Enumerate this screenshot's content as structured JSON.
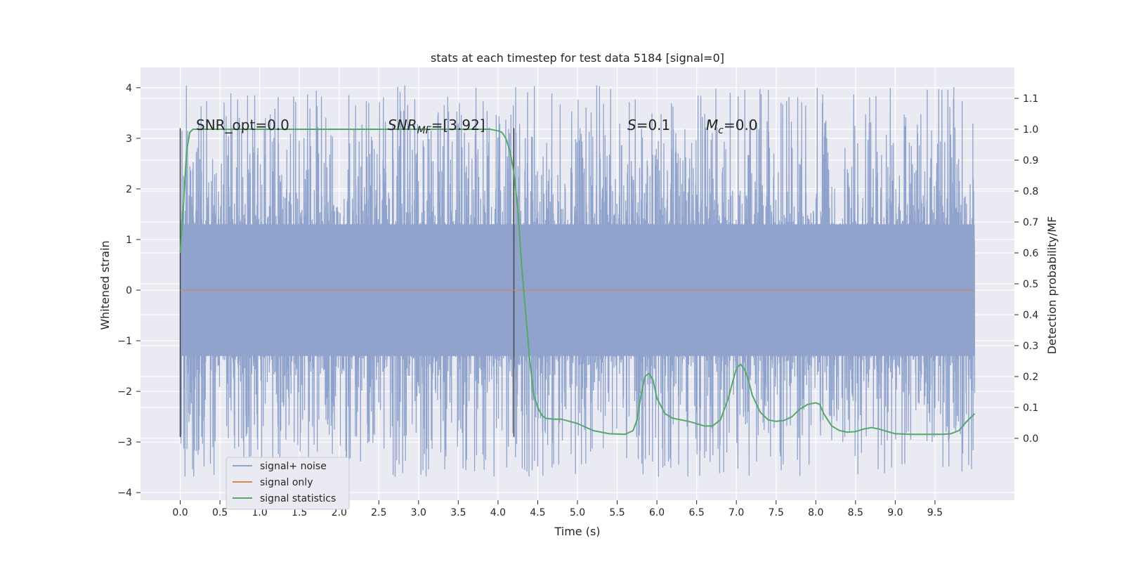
{
  "chart_data": {
    "type": "line",
    "title": "stats at each timestep for test data 5184 [signal=0]",
    "xlabel": "Time (s)",
    "ylabel": "Whitened strain",
    "ylabel_right": "Detection probability/MF",
    "xlim": [
      -0.5,
      10.5
    ],
    "ylim": [
      -4.15,
      4.4
    ],
    "ylim_right": [
      -0.2,
      1.2
    ],
    "x_ticks": [
      "0.0",
      "0.5",
      "1.0",
      "1.5",
      "2.0",
      "2.5",
      "3.0",
      "3.5",
      "4.0",
      "4.5",
      "5.0",
      "5.5",
      "6.0",
      "6.5",
      "7.0",
      "7.5",
      "8.0",
      "8.5",
      "9.0",
      "9.5"
    ],
    "y_ticks": [
      "4",
      "3",
      "2",
      "1",
      "0",
      "−1",
      "−2",
      "−3",
      "−4"
    ],
    "y_ticks_right": [
      "1.1",
      "1.0",
      "0.9",
      "0.8",
      "0.7",
      "0.6",
      "0.5",
      "0.4",
      "0.3",
      "0.2",
      "0.1",
      "0.0"
    ],
    "grid": true,
    "legend_position": "lower-left",
    "annotations": {
      "snr_opt": "SNR_opt=0.0",
      "snr_mf_italic": "SNR",
      "snr_mf_sub": "MF",
      "snr_mf_value": "=[3.92]",
      "s_italic": "S",
      "s_value": "=0.1",
      "mc_italic": "M",
      "mc_sub": "c",
      "mc_value": "=0.0"
    },
    "vertical_markers": [
      0.0,
      4.2
    ],
    "series": [
      {
        "name": "signal+ noise",
        "color": "#8fa3cc",
        "x_range": [
          0.0,
          10.0
        ],
        "envelope_core": 1.3,
        "peak_range": [
          -3.7,
          4.05
        ]
      },
      {
        "name": "signal only",
        "color": "#dd8452",
        "x": [
          0.0,
          10.0
        ],
        "y": [
          0.0,
          0.0
        ]
      },
      {
        "name": "signal statistics",
        "color": "#55a868",
        "axis": "right",
        "x": [
          0.0,
          0.04,
          0.08,
          0.12,
          0.16,
          0.2,
          0.3,
          0.5,
          1.0,
          2.0,
          3.0,
          3.5,
          3.9,
          4.0,
          4.05,
          4.1,
          4.15,
          4.2,
          4.25,
          4.3,
          4.35,
          4.4,
          4.45,
          4.5,
          4.55,
          4.6,
          4.7,
          4.8,
          5.0,
          5.2,
          5.4,
          5.6,
          5.7,
          5.75,
          5.8,
          5.85,
          5.9,
          5.95,
          6.0,
          6.1,
          6.2,
          6.4,
          6.6,
          6.7,
          6.8,
          6.9,
          6.95,
          7.0,
          7.05,
          7.1,
          7.15,
          7.2,
          7.3,
          7.4,
          7.5,
          7.6,
          7.7,
          7.8,
          7.9,
          8.0,
          8.05,
          8.1,
          8.2,
          8.3,
          8.4,
          8.5,
          8.6,
          8.7,
          8.8,
          8.9,
          9.0,
          9.2,
          9.4,
          9.6,
          9.7,
          9.8,
          9.9,
          10.0
        ],
        "y": [
          0.6,
          0.75,
          0.93,
          0.99,
          1.0,
          1.0,
          1.0,
          1.0,
          1.0,
          1.0,
          1.0,
          1.0,
          1.0,
          0.995,
          0.99,
          0.97,
          0.93,
          0.86,
          0.74,
          0.55,
          0.4,
          0.25,
          0.14,
          0.1,
          0.075,
          0.065,
          0.062,
          0.062,
          0.048,
          0.025,
          0.015,
          0.013,
          0.025,
          0.06,
          0.14,
          0.2,
          0.21,
          0.19,
          0.13,
          0.08,
          0.065,
          0.055,
          0.04,
          0.04,
          0.06,
          0.13,
          0.18,
          0.225,
          0.24,
          0.225,
          0.19,
          0.14,
          0.085,
          0.06,
          0.055,
          0.058,
          0.07,
          0.095,
          0.11,
          0.115,
          0.11,
          0.08,
          0.04,
          0.025,
          0.02,
          0.022,
          0.03,
          0.035,
          0.03,
          0.022,
          0.015,
          0.013,
          0.013,
          0.013,
          0.015,
          0.025,
          0.055,
          0.08
        ]
      }
    ]
  }
}
